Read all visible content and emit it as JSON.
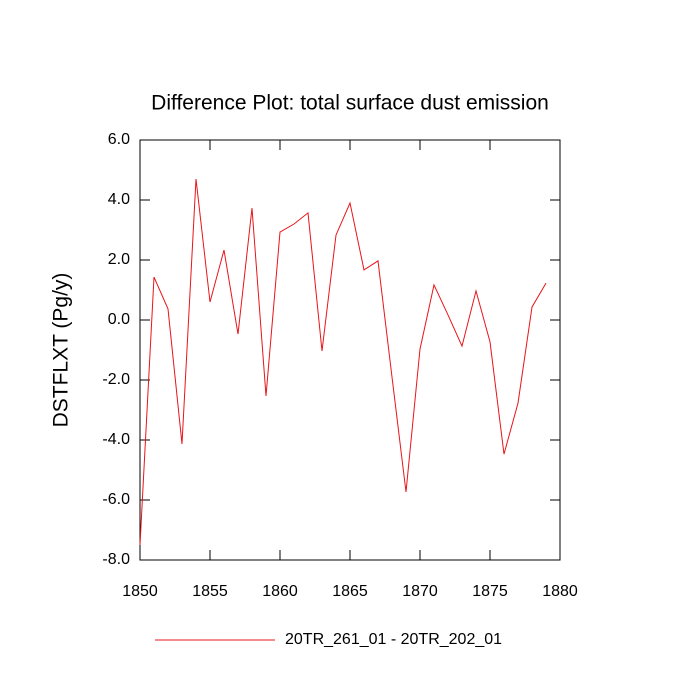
{
  "chart_data": {
    "type": "line",
    "title": "Difference Plot: total surface dust emission",
    "y_label": "DSTFLXT  (Pg/y)",
    "x": [
      1850,
      1851,
      1852,
      1853,
      1854,
      1855,
      1856,
      1857,
      1858,
      1859,
      1860,
      1861,
      1862,
      1863,
      1864,
      1865,
      1866,
      1867,
      1868,
      1869,
      1870,
      1871,
      1872,
      1873,
      1874,
      1875,
      1876,
      1877,
      1878,
      1879
    ],
    "series": [
      {
        "name": "20TR_261_01 - 20TR_202_01",
        "color": "#e8141a",
        "values": [
          -7.5,
          1.43,
          0.37,
          -4.13,
          4.7,
          0.6,
          2.33,
          -0.47,
          3.73,
          -2.53,
          2.93,
          3.2,
          3.57,
          -1.03,
          2.83,
          3.9,
          1.67,
          1.97,
          -1.9,
          -5.73,
          -0.97,
          1.17,
          0.17,
          -0.87,
          0.97,
          -0.73,
          -4.47,
          -2.77,
          0.43,
          1.23
        ]
      }
    ],
    "xlim": [
      1850,
      1880
    ],
    "xticks": [
      1850,
      1855,
      1860,
      1865,
      1870,
      1875,
      1880
    ],
    "ylim": [
      -8,
      6
    ],
    "yticks": [
      {
        "value": -8,
        "label": "-8.0"
      },
      {
        "value": -6,
        "label": "-6.0"
      },
      {
        "value": -4,
        "label": "-4.0"
      },
      {
        "value": -2,
        "label": "-2.0"
      },
      {
        "value": 0,
        "label": "0.0"
      },
      {
        "value": 2,
        "label": "2.0"
      },
      {
        "value": 4,
        "label": "4.0"
      },
      {
        "value": 6,
        "label": "6.0"
      }
    ],
    "grid": false
  }
}
